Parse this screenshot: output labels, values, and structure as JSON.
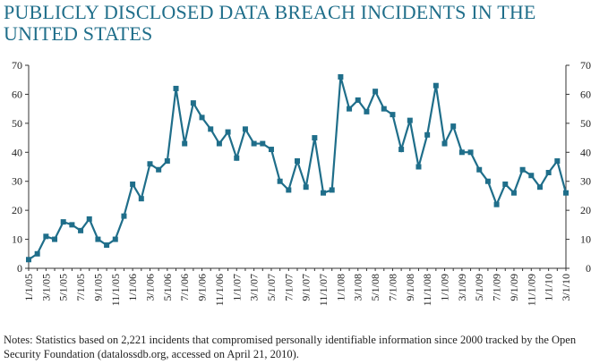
{
  "chart_data": {
    "type": "line",
    "title": "PUBLICLY DISCLOSED DATA BREACH INCIDENTS IN THE UNITED STATES",
    "notes": "Notes: Statistics based on 2,221 incidents that compromised personally identifiable information since 2000 tracked by the Open Security Foundation (datalossdb.org, accessed on April 21, 2010).",
    "categories": [
      "1/1/05",
      null,
      "3/1/05",
      null,
      "5/1/05",
      null,
      "7/1/05",
      null,
      "9/1/05",
      null,
      "11/1/05",
      null,
      "1/1/06",
      null,
      "3/1/06",
      null,
      "5/1/06",
      null,
      "7/1/06",
      null,
      "9/1/06",
      null,
      "11/1/06",
      null,
      "1/1/07",
      null,
      "3/1/07",
      null,
      "5/1/07",
      null,
      "7/1/07",
      null,
      "9/1/07",
      null,
      "11/1/07",
      null,
      "1/1/08",
      null,
      "3/1/08",
      null,
      "5/1/08",
      null,
      "7/1/08",
      null,
      "9/1/08",
      null,
      "11/1/08",
      null,
      "1/1/09",
      null,
      "3/1/09",
      null,
      "5/1/09",
      null,
      "7/1/09",
      null,
      "9/1/09",
      null,
      "11/1/09",
      null,
      "1/1/10",
      null,
      "3/1/10"
    ],
    "series": [
      {
        "color": "#1f6e8a",
        "values": [
          3,
          5,
          11,
          10,
          16,
          15,
          13,
          17,
          10,
          8,
          10,
          18,
          29,
          24,
          36,
          34,
          37,
          62,
          43,
          57,
          52,
          48,
          43,
          47,
          38,
          48,
          43,
          43,
          41,
          30,
          27,
          37,
          28,
          45,
          26,
          27,
          66,
          55,
          58,
          54,
          61,
          55,
          53,
          41,
          51,
          35,
          46,
          63,
          43,
          49,
          40,
          40,
          34,
          30,
          22,
          29,
          26,
          34,
          32,
          28,
          33,
          37,
          26
        ]
      }
    ],
    "ylim": [
      0,
      70
    ],
    "yticks": [
      0,
      10,
      20,
      30,
      40,
      50,
      60,
      70
    ],
    "y2lim": [
      0,
      70
    ],
    "y2ticks": [
      0,
      10,
      20,
      30,
      40,
      50,
      60,
      70
    ]
  }
}
